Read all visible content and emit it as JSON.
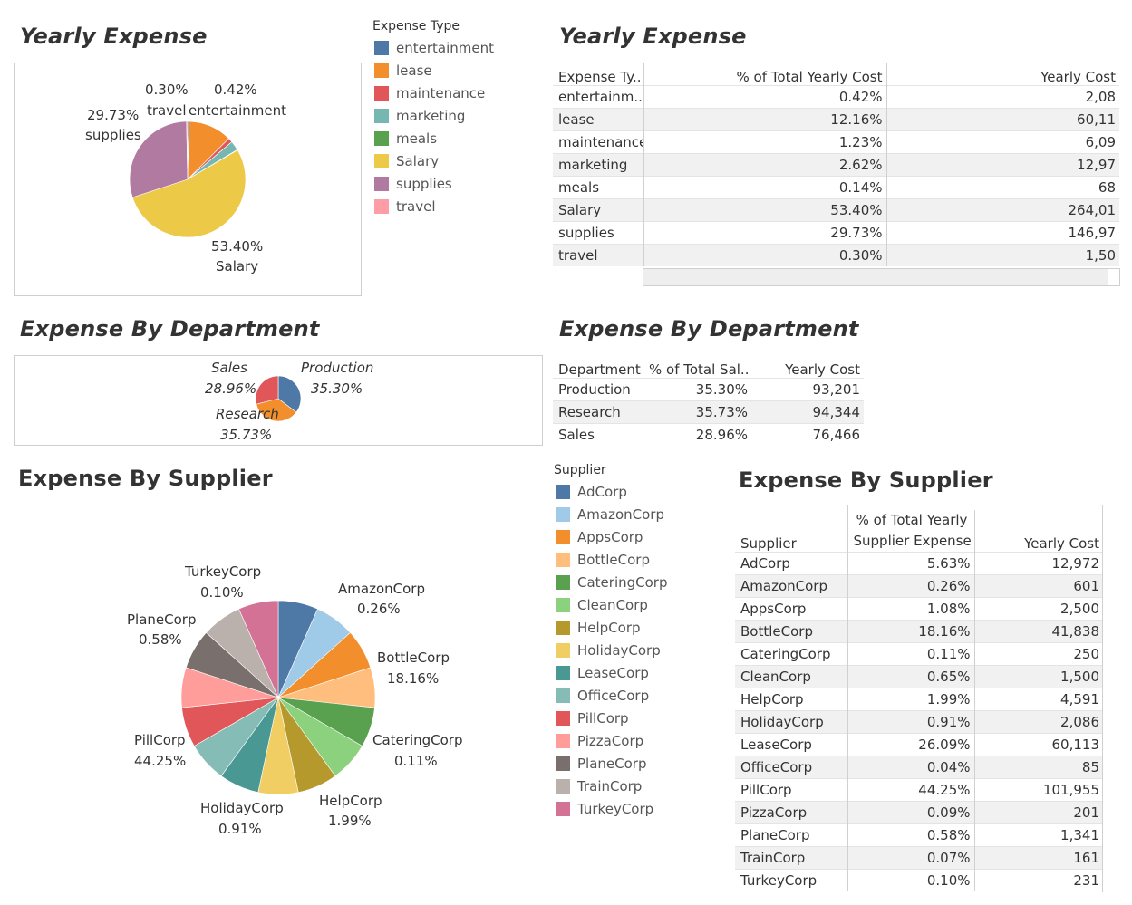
{
  "colors": {
    "entertainment": "#4e79a7",
    "lease": "#f28e2b",
    "maintenance": "#e15759",
    "marketing": "#76b7b2",
    "meals": "#59a14f",
    "Salary": "#edc948",
    "supplies": "#b07aa1",
    "travel": "#ff9da7",
    "Production": "#4e79a7",
    "Research": "#f28e2b",
    "Sales": "#e15759"
  },
  "yearly": {
    "title": "Yearly Expense",
    "legend_title": "Expense Type",
    "legend": [
      "entertainment",
      "lease",
      "maintenance",
      "marketing",
      "meals",
      "Salary",
      "supplies",
      "travel"
    ],
    "labels": {
      "travel_pct": "0.30%",
      "travel_name": "travel",
      "entertainment_pct": "0.42%",
      "entertainment_name": "entertainment",
      "supplies_pct": "29.73%",
      "supplies_name": "supplies",
      "salary_pct": "53.40%",
      "salary_name": "Salary"
    },
    "table": {
      "title": "Yearly Expense",
      "headers": [
        "Expense Ty..",
        "% of Total Yearly Cost",
        "Yearly Cost"
      ],
      "rows": [
        [
          "entertainm..",
          "0.42%",
          "2,08"
        ],
        [
          "lease",
          "12.16%",
          "60,11"
        ],
        [
          "maintenance",
          "1.23%",
          "6,09"
        ],
        [
          "marketing",
          "2.62%",
          "12,97"
        ],
        [
          "meals",
          "0.14%",
          "68"
        ],
        [
          "Salary",
          "53.40%",
          "264,01"
        ],
        [
          "supplies",
          "29.73%",
          "146,97"
        ],
        [
          "travel",
          "0.30%",
          "1,50"
        ]
      ]
    }
  },
  "department": {
    "title": "Expense By Department",
    "labels": {
      "sales_name": "Sales",
      "sales_pct": "28.96%",
      "production_name": "Production",
      "production_pct": "35.30%",
      "research_name": "Research",
      "research_pct": "35.73%"
    },
    "table": {
      "title": "Expense By Department",
      "headers": [
        "Department",
        "% of Total Sal..",
        "Yearly Cost"
      ],
      "rows": [
        [
          "Production",
          "35.30%",
          "93,201"
        ],
        [
          "Research",
          "35.73%",
          "94,344"
        ],
        [
          "Sales",
          "28.96%",
          "76,466"
        ]
      ]
    }
  },
  "supplier": {
    "title": "Expense By Supplier",
    "legend_title": "Supplier",
    "legend": [
      {
        "name": "AdCorp",
        "color": "#4e79a7"
      },
      {
        "name": "AmazonCorp",
        "color": "#a0cbe8"
      },
      {
        "name": "AppsCorp",
        "color": "#f28e2b"
      },
      {
        "name": "BottleCorp",
        "color": "#ffbe7d"
      },
      {
        "name": "CateringCorp",
        "color": "#59a14f"
      },
      {
        "name": "CleanCorp",
        "color": "#8cd17d"
      },
      {
        "name": "HelpCorp",
        "color": "#b6992d"
      },
      {
        "name": "HolidayCorp",
        "color": "#f1ce63"
      },
      {
        "name": "LeaseCorp",
        "color": "#499894"
      },
      {
        "name": "OfficeCorp",
        "color": "#86bcb6"
      },
      {
        "name": "PillCorp",
        "color": "#e15759"
      },
      {
        "name": "PizzaCorp",
        "color": "#ff9d9a"
      },
      {
        "name": "PlaneCorp",
        "color": "#79706e"
      },
      {
        "name": "TrainCorp",
        "color": "#bab0ac"
      },
      {
        "name": "TurkeyCorp",
        "color": "#d37295"
      }
    ],
    "labels": {
      "turkey_name": "TurkeyCorp",
      "turkey_pct": "0.10%",
      "amazon_name": "AmazonCorp",
      "amazon_pct": "0.26%",
      "plane_name": "PlaneCorp",
      "plane_pct": "0.58%",
      "bottle_name": "BottleCorp",
      "bottle_pct": "18.16%",
      "pill_name": "PillCorp",
      "pill_pct": "44.25%",
      "catering_name": "CateringCorp",
      "catering_pct": "0.11%",
      "holiday_name": "HolidayCorp",
      "holiday_pct": "0.91%",
      "help_name": "HelpCorp",
      "help_pct": "1.99%"
    },
    "table": {
      "title": "Expense By Supplier",
      "headers": [
        "Supplier",
        "% of Total Yearly",
        "Supplier Expense",
        "Yearly Cost"
      ],
      "rows": [
        [
          "AdCorp",
          "5.63%",
          "12,972"
        ],
        [
          "AmazonCorp",
          "0.26%",
          "601"
        ],
        [
          "AppsCorp",
          "1.08%",
          "2,500"
        ],
        [
          "BottleCorp",
          "18.16%",
          "41,838"
        ],
        [
          "CateringCorp",
          "0.11%",
          "250"
        ],
        [
          "CleanCorp",
          "0.65%",
          "1,500"
        ],
        [
          "HelpCorp",
          "1.99%",
          "4,591"
        ],
        [
          "HolidayCorp",
          "0.91%",
          "2,086"
        ],
        [
          "LeaseCorp",
          "26.09%",
          "60,113"
        ],
        [
          "OfficeCorp",
          "0.04%",
          "85"
        ],
        [
          "PillCorp",
          "44.25%",
          "101,955"
        ],
        [
          "PizzaCorp",
          "0.09%",
          "201"
        ],
        [
          "PlaneCorp",
          "0.58%",
          "1,341"
        ],
        [
          "TrainCorp",
          "0.07%",
          "161"
        ],
        [
          "TurkeyCorp",
          "0.10%",
          "231"
        ]
      ]
    }
  },
  "chart_data": [
    {
      "type": "pie",
      "title": "Yearly Expense",
      "categories": [
        "entertainment",
        "lease",
        "maintenance",
        "marketing",
        "meals",
        "Salary",
        "supplies",
        "travel"
      ],
      "values": [
        0.42,
        12.16,
        1.23,
        2.62,
        0.14,
        53.4,
        29.73,
        0.3
      ],
      "legend_title": "Expense Type",
      "legend_position": "right"
    },
    {
      "type": "pie",
      "title": "Expense By Department",
      "categories": [
        "Production",
        "Research",
        "Sales"
      ],
      "values": [
        35.3,
        35.73,
        28.96
      ]
    },
    {
      "type": "pie",
      "title": "Expense By Supplier",
      "categories": [
        "AdCorp",
        "AmazonCorp",
        "AppsCorp",
        "BottleCorp",
        "CateringCorp",
        "CleanCorp",
        "HelpCorp",
        "HolidayCorp",
        "LeaseCorp",
        "OfficeCorp",
        "PillCorp",
        "PizzaCorp",
        "PlaneCorp",
        "TrainCorp",
        "TurkeyCorp"
      ],
      "values": [
        5.63,
        0.26,
        1.08,
        18.16,
        0.11,
        0.65,
        1.99,
        0.91,
        26.09,
        0.04,
        44.25,
        0.09,
        0.58,
        0.07,
        0.1
      ],
      "legend_title": "Supplier",
      "legend_position": "right"
    },
    {
      "type": "table",
      "title": "Yearly Expense",
      "columns": [
        "Expense Ty..",
        "% of Total Yearly Cost",
        "Yearly Cost"
      ]
    },
    {
      "type": "table",
      "title": "Expense By Department",
      "columns": [
        "Department",
        "% of Total Sal..",
        "Yearly Cost"
      ]
    },
    {
      "type": "table",
      "title": "Expense By Supplier",
      "columns": [
        "Supplier",
        "% of Total Yearly Supplier Expense",
        "Yearly Cost"
      ]
    }
  ]
}
